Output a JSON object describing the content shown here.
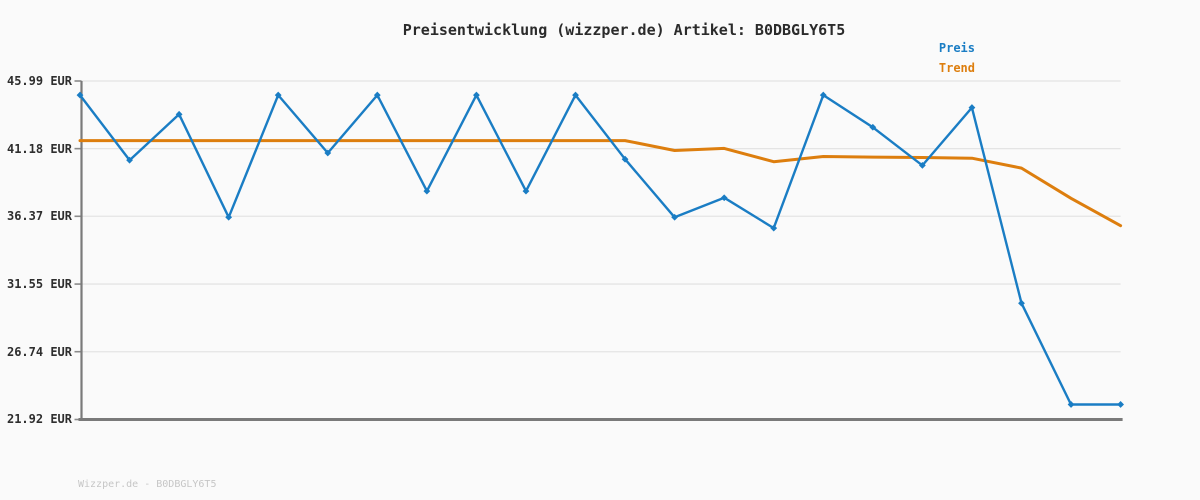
{
  "title": "Preisentwicklung (wizzper.de) Artikel: B0DBGLY6T5",
  "legend": {
    "preis": "Preis",
    "trend": "Trend"
  },
  "footer": {
    "text": "Wizzper.de - B0DBGLY6T5"
  },
  "colors": {
    "background": "#fafafa",
    "preis_blue": "#1a7dc4",
    "trend_orange": "#dd7e0e",
    "gridline": "#e4e4e4",
    "axis": "#7a7a7a",
    "tick": "#8a8a8a",
    "title_text": "#2b2b2b",
    "tick_label_text": "#2e2e2e",
    "footer_text": "#c6c6c6"
  },
  "chart_data": {
    "type": "line",
    "title": "Preisentwicklung (wizzper.de) Artikel: B0DBGLY6T5",
    "xlabel": "",
    "ylabel": "EUR",
    "x_tick_labels_visible": false,
    "n_points": 22,
    "ylim": [
      21.92,
      45.99
    ],
    "yticks": [
      "45.99 EUR",
      "41.18 EUR",
      "36.37 EUR",
      "31.55 EUR",
      "26.74 EUR",
      "21.92 EUR"
    ],
    "ytick_values": [
      45.99,
      41.18,
      36.37,
      31.55,
      26.74,
      21.92
    ],
    "grid": "horizontal",
    "legend_position": "top-right",
    "series": [
      {
        "name": "Preis",
        "color": "#1a7dc4",
        "marker": "diamond",
        "line_width": 2.4,
        "values": [
          44.99,
          40.36,
          43.62,
          36.3,
          44.99,
          40.87,
          44.99,
          38.16,
          44.99,
          38.16,
          44.99,
          40.43,
          36.3,
          37.69,
          35.53,
          44.99,
          42.7,
          39.99,
          44.1,
          30.19,
          22.99,
          22.99
        ]
      },
      {
        "name": "Trend",
        "color": "#dd7e0e",
        "marker": "none",
        "line_width": 3,
        "values": [
          41.75,
          41.75,
          41.75,
          41.75,
          41.75,
          41.75,
          41.75,
          41.75,
          41.75,
          41.75,
          41.75,
          41.75,
          41.05,
          41.2,
          40.25,
          40.62,
          40.58,
          40.55,
          40.5,
          39.8,
          37.65,
          35.7
        ]
      }
    ]
  }
}
